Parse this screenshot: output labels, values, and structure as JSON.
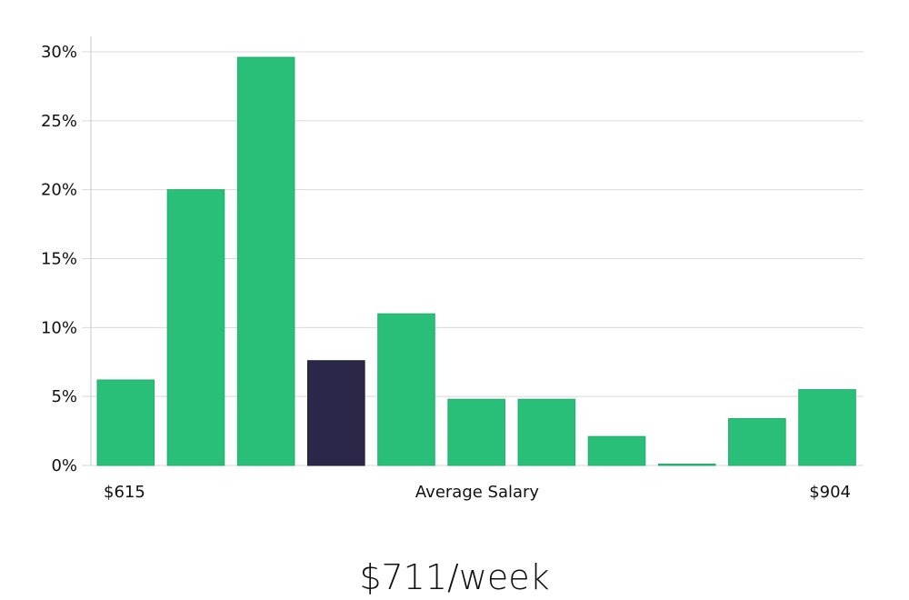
{
  "chart_data": {
    "type": "bar",
    "values": [
      6.2,
      20.0,
      29.6,
      7.6,
      11.0,
      4.8,
      4.8,
      2.1,
      0.1,
      3.4,
      5.5
    ],
    "highlight_index": 3,
    "ylim": [
      0,
      30
    ],
    "yticks": [
      0,
      5,
      10,
      15,
      20,
      25,
      30
    ],
    "ytick_format": "{v}%",
    "xlabel_left": "$615",
    "xlabel_center": "Average Salary",
    "xlabel_right": "$904",
    "headline": "$711/week",
    "grid": true,
    "colors": {
      "bar": "#29bf79",
      "bar_highlight": "#2a2748",
      "grid": "#d9d9d9",
      "axis": "#c8c8c8",
      "text": "#111111"
    }
  }
}
